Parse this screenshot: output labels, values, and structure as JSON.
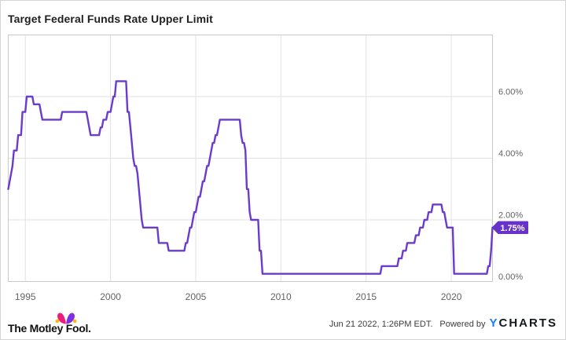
{
  "title": "Target Federal Funds Rate Upper Limit",
  "chart_data": {
    "type": "line",
    "series_name": "Target Federal Funds Rate Upper Limit",
    "unit": "percent",
    "start_year": 1994,
    "interval_months": 1,
    "xlim_years": [
      1994.0,
      2022.4167
    ],
    "ylim": [
      0,
      8
    ],
    "grid": true,
    "legend": "none",
    "line_color": "#6b3ccc",
    "badge_color": "#6733c8",
    "last_value": 1.75,
    "last_value_label": "1.75%",
    "y_ticks": [
      {
        "value": 6,
        "label": "6.00%"
      },
      {
        "value": 4,
        "label": "4.00%"
      },
      {
        "value": 2,
        "label": "2.00%"
      },
      {
        "value": 0,
        "label": "0.00%"
      }
    ],
    "x_ticks": [
      {
        "year": 1995,
        "label": "1995"
      },
      {
        "year": 2000,
        "label": "2000"
      },
      {
        "year": 2005,
        "label": "2005"
      },
      {
        "year": 2010,
        "label": "2010"
      },
      {
        "year": 2015,
        "label": "2015"
      },
      {
        "year": 2020,
        "label": "2020"
      }
    ],
    "values": [
      3.0,
      3.25,
      3.5,
      3.75,
      4.25,
      4.25,
      4.25,
      4.75,
      4.75,
      4.75,
      5.5,
      5.5,
      5.5,
      6.0,
      6.0,
      6.0,
      6.0,
      6.0,
      5.75,
      5.75,
      5.75,
      5.75,
      5.75,
      5.5,
      5.25,
      5.25,
      5.25,
      5.25,
      5.25,
      5.25,
      5.25,
      5.25,
      5.25,
      5.25,
      5.25,
      5.25,
      5.25,
      5.25,
      5.5,
      5.5,
      5.5,
      5.5,
      5.5,
      5.5,
      5.5,
      5.5,
      5.5,
      5.5,
      5.5,
      5.5,
      5.5,
      5.5,
      5.5,
      5.5,
      5.5,
      5.5,
      5.25,
      5.0,
      4.75,
      4.75,
      4.75,
      4.75,
      4.75,
      4.75,
      4.75,
      5.0,
      5.0,
      5.25,
      5.25,
      5.25,
      5.5,
      5.5,
      5.5,
      5.75,
      6.0,
      6.0,
      6.5,
      6.5,
      6.5,
      6.5,
      6.5,
      6.5,
      6.5,
      6.5,
      5.5,
      5.5,
      5.0,
      4.5,
      4.0,
      3.75,
      3.75,
      3.5,
      3.0,
      2.5,
      2.0,
      1.75,
      1.75,
      1.75,
      1.75,
      1.75,
      1.75,
      1.75,
      1.75,
      1.75,
      1.75,
      1.75,
      1.25,
      1.25,
      1.25,
      1.25,
      1.25,
      1.25,
      1.25,
      1.0,
      1.0,
      1.0,
      1.0,
      1.0,
      1.0,
      1.0,
      1.0,
      1.0,
      1.0,
      1.0,
      1.0,
      1.25,
      1.25,
      1.5,
      1.75,
      1.75,
      2.0,
      2.25,
      2.25,
      2.5,
      2.75,
      2.75,
      3.0,
      3.25,
      3.25,
      3.5,
      3.75,
      3.75,
      4.0,
      4.25,
      4.5,
      4.5,
      4.75,
      4.75,
      5.0,
      5.25,
      5.25,
      5.25,
      5.25,
      5.25,
      5.25,
      5.25,
      5.25,
      5.25,
      5.25,
      5.25,
      5.25,
      5.25,
      5.25,
      5.25,
      4.75,
      4.5,
      4.5,
      4.25,
      3.0,
      3.0,
      2.25,
      2.0,
      2.0,
      2.0,
      2.0,
      2.0,
      2.0,
      1.0,
      1.0,
      0.25,
      0.25,
      0.25,
      0.25,
      0.25,
      0.25,
      0.25,
      0.25,
      0.25,
      0.25,
      0.25,
      0.25,
      0.25,
      0.25,
      0.25,
      0.25,
      0.25,
      0.25,
      0.25,
      0.25,
      0.25,
      0.25,
      0.25,
      0.25,
      0.25,
      0.25,
      0.25,
      0.25,
      0.25,
      0.25,
      0.25,
      0.25,
      0.25,
      0.25,
      0.25,
      0.25,
      0.25,
      0.25,
      0.25,
      0.25,
      0.25,
      0.25,
      0.25,
      0.25,
      0.25,
      0.25,
      0.25,
      0.25,
      0.25,
      0.25,
      0.25,
      0.25,
      0.25,
      0.25,
      0.25,
      0.25,
      0.25,
      0.25,
      0.25,
      0.25,
      0.25,
      0.25,
      0.25,
      0.25,
      0.25,
      0.25,
      0.25,
      0.25,
      0.25,
      0.25,
      0.25,
      0.25,
      0.25,
      0.25,
      0.25,
      0.25,
      0.25,
      0.25,
      0.25,
      0.25,
      0.25,
      0.25,
      0.25,
      0.25,
      0.5,
      0.5,
      0.5,
      0.5,
      0.5,
      0.5,
      0.5,
      0.5,
      0.5,
      0.5,
      0.5,
      0.5,
      0.75,
      0.75,
      0.75,
      1.0,
      1.0,
      1.0,
      1.25,
      1.25,
      1.25,
      1.25,
      1.25,
      1.25,
      1.5,
      1.5,
      1.5,
      1.75,
      1.75,
      1.75,
      2.0,
      2.0,
      2.0,
      2.25,
      2.25,
      2.25,
      2.5,
      2.5,
      2.5,
      2.5,
      2.5,
      2.5,
      2.5,
      2.25,
      2.25,
      2.0,
      1.75,
      1.75,
      1.75,
      1.75,
      1.75,
      0.25,
      0.25,
      0.25,
      0.25,
      0.25,
      0.25,
      0.25,
      0.25,
      0.25,
      0.25,
      0.25,
      0.25,
      0.25,
      0.25,
      0.25,
      0.25,
      0.25,
      0.25,
      0.25,
      0.25,
      0.25,
      0.25,
      0.25,
      0.25,
      0.5,
      0.5,
      1.0,
      1.75
    ]
  },
  "footer": {
    "brand": "The Motley Fool.",
    "brand_icon": "jester-hat-icon",
    "timestamp": "Jun 21 2022, 1:26PM EDT.",
    "powered_by": "Powered by",
    "ycharts_y": "Y",
    "ycharts_rest": "CHARTS"
  },
  "colors": {
    "line": "#6b3ccc",
    "badge": "#6733c8",
    "grid": "#e2e2e2",
    "plot_border": "#c9c9c9",
    "axis_text": "#636363",
    "ycharts_blue": "#1b7ef2",
    "hat_pink": "#ec1e79",
    "hat_purple": "#7c2fe3",
    "hat_gold": "#ffb600"
  }
}
